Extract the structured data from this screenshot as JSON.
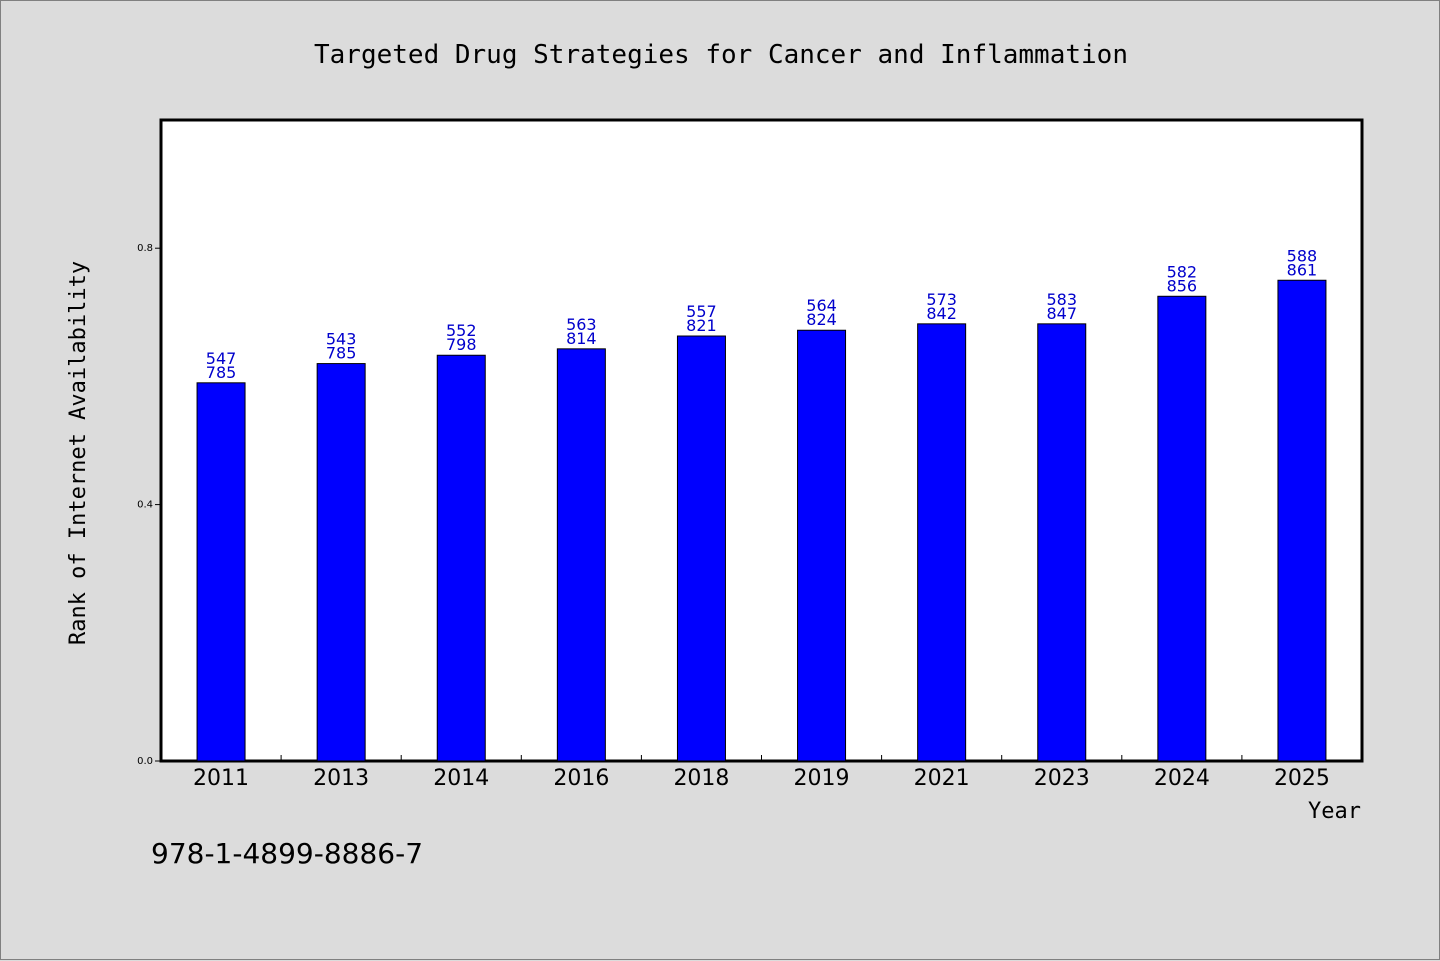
{
  "chart_data": {
    "type": "bar",
    "title": "Targeted Drug Strategies for Cancer and Inflammation",
    "xlabel": "Year",
    "ylabel": "Rank of Internet Availability",
    "categories": [
      "2011",
      "2013",
      "2014",
      "2016",
      "2018",
      "2019",
      "2021",
      "2023",
      "2024",
      "2025"
    ],
    "series": [
      {
        "values": [
          0.59,
          0.62,
          0.633,
          0.643,
          0.663,
          0.672,
          0.682,
          0.682,
          0.725,
          0.75
        ]
      }
    ],
    "data_labels": [
      [
        "547",
        "785"
      ],
      [
        "543",
        "785"
      ],
      [
        "552",
        "798"
      ],
      [
        "563",
        "814"
      ],
      [
        "557",
        "821"
      ],
      [
        "564",
        "824"
      ],
      [
        "573",
        "842"
      ],
      [
        "583",
        "847"
      ],
      [
        "582",
        "856"
      ],
      [
        "588",
        "861"
      ]
    ],
    "ylim": [
      0,
      1.0
    ],
    "yticks": [
      0.0,
      0.4,
      0.8
    ],
    "ytick_labels": [
      "0.0",
      "0.4",
      "0.8"
    ],
    "grid": false,
    "bar_color": "#0000ff",
    "label_color": "#0000cc"
  },
  "footnote": "978-1-4899-8886-7"
}
